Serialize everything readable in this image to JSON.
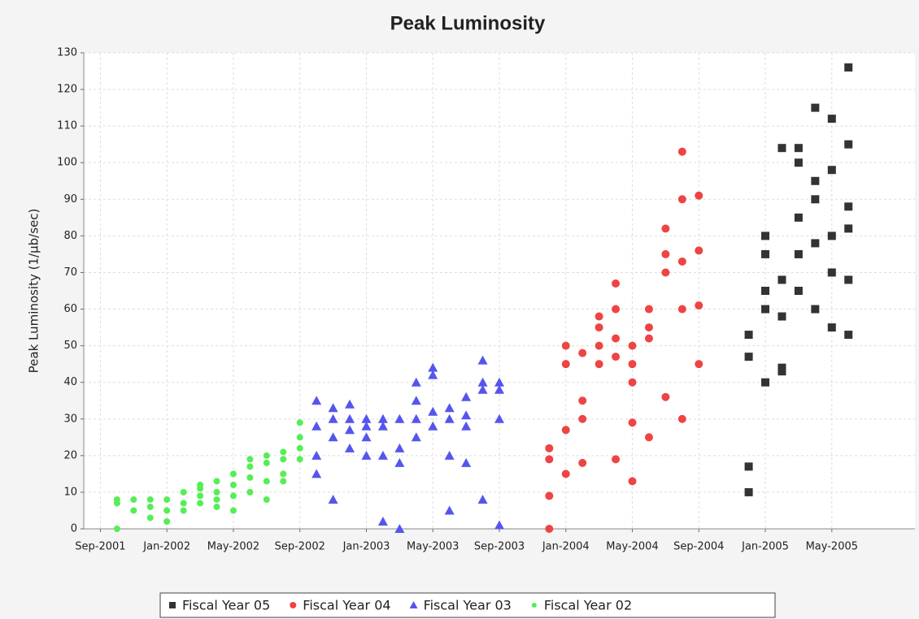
{
  "chart_data": {
    "type": "scatter",
    "title": "Peak Luminosity",
    "y_label": "Peak Luminosity (1/µb/sec)",
    "xlim": [
      "2001-08",
      "2005-10"
    ],
    "xticks": [
      {
        "value": "2001-09",
        "label": "Sep-2001"
      },
      {
        "value": "2002-01",
        "label": "Jan-2002"
      },
      {
        "value": "2002-05",
        "label": "May-2002"
      },
      {
        "value": "2002-09",
        "label": "Sep-2002"
      },
      {
        "value": "2003-01",
        "label": "Jan-2003"
      },
      {
        "value": "2003-05",
        "label": "May-2003"
      },
      {
        "value": "2003-09",
        "label": "Sep-2003"
      },
      {
        "value": "2004-01",
        "label": "Jan-2004"
      },
      {
        "value": "2004-05",
        "label": "May-2004"
      },
      {
        "value": "2004-09",
        "label": "Sep-2004"
      },
      {
        "value": "2005-01",
        "label": "Jan-2005"
      },
      {
        "value": "2005-05",
        "label": "May-2005"
      }
    ],
    "ylim": [
      0,
      130
    ],
    "yticks": [
      0,
      10,
      20,
      30,
      40,
      50,
      60,
      70,
      80,
      90,
      100,
      110,
      120,
      130
    ],
    "grid": true,
    "legend": "bottom",
    "series": [
      {
        "name": "Fiscal Year 05",
        "color": "#333333",
        "marker": "square",
        "x": [
          "2004-12",
          "2004-12",
          "2004-12",
          "2004-12",
          "2005-01",
          "2005-01",
          "2005-01",
          "2005-01",
          "2005-01",
          "2005-02",
          "2005-02",
          "2005-02",
          "2005-02",
          "2005-02",
          "2005-03",
          "2005-03",
          "2005-03",
          "2005-03",
          "2005-03",
          "2005-04",
          "2005-04",
          "2005-04",
          "2005-04",
          "2005-04",
          "2005-05",
          "2005-05",
          "2005-05",
          "2005-05",
          "2005-05",
          "2005-06",
          "2005-06",
          "2005-06",
          "2005-06",
          "2005-06",
          "2005-06"
        ],
        "values": [
          10,
          17,
          47,
          53,
          60,
          80,
          40,
          65,
          75,
          104,
          68,
          44,
          58,
          43,
          100,
          85,
          75,
          65,
          104,
          95,
          78,
          115,
          60,
          90,
          112,
          98,
          70,
          55,
          80,
          126,
          105,
          88,
          53,
          68,
          82
        ]
      },
      {
        "name": "Fiscal Year 04",
        "color": "#ee4444",
        "marker": "circle",
        "x": [
          "2003-12",
          "2003-12",
          "2003-12",
          "2003-12",
          "2004-01",
          "2004-01",
          "2004-01",
          "2004-01",
          "2004-02",
          "2004-02",
          "2004-02",
          "2004-02",
          "2004-03",
          "2004-03",
          "2004-03",
          "2004-03",
          "2004-04",
          "2004-04",
          "2004-04",
          "2004-04",
          "2004-04",
          "2004-05",
          "2004-05",
          "2004-05",
          "2004-05",
          "2004-05",
          "2004-06",
          "2004-06",
          "2004-06",
          "2004-06",
          "2004-07",
          "2004-07",
          "2004-07",
          "2004-07",
          "2004-08",
          "2004-08",
          "2004-08",
          "2004-08",
          "2004-08",
          "2004-09",
          "2004-09",
          "2004-09",
          "2004-09"
        ],
        "values": [
          0,
          9,
          22,
          19,
          27,
          50,
          45,
          15,
          48,
          30,
          35,
          18,
          55,
          50,
          58,
          45,
          67,
          52,
          60,
          47,
          19,
          45,
          40,
          13,
          50,
          29,
          55,
          52,
          60,
          25,
          70,
          75,
          82,
          36,
          103,
          90,
          73,
          60,
          30,
          91,
          76,
          61,
          45
        ]
      },
      {
        "name": "Fiscal Year 03",
        "color": "#5555ee",
        "marker": "triangle",
        "x": [
          "2002-10",
          "2002-10",
          "2002-10",
          "2002-10",
          "2002-11",
          "2002-11",
          "2002-11",
          "2002-11",
          "2002-12",
          "2002-12",
          "2002-12",
          "2002-12",
          "2003-01",
          "2003-01",
          "2003-01",
          "2003-01",
          "2003-02",
          "2003-02",
          "2003-02",
          "2003-02",
          "2003-03",
          "2003-03",
          "2003-03",
          "2003-03",
          "2003-04",
          "2003-04",
          "2003-04",
          "2003-04",
          "2003-05",
          "2003-05",
          "2003-05",
          "2003-05",
          "2003-06",
          "2003-06",
          "2003-06",
          "2003-06",
          "2003-07",
          "2003-07",
          "2003-07",
          "2003-07",
          "2003-08",
          "2003-08",
          "2003-08",
          "2003-08",
          "2003-09",
          "2003-09",
          "2003-09",
          "2003-09"
        ],
        "values": [
          35,
          28,
          20,
          15,
          33,
          25,
          8,
          30,
          30,
          27,
          22,
          34,
          28,
          25,
          20,
          30,
          2,
          20,
          30,
          28,
          22,
          30,
          18,
          0,
          40,
          35,
          25,
          30,
          42,
          44,
          28,
          32,
          30,
          20,
          5,
          33,
          28,
          18,
          31,
          36,
          40,
          38,
          8,
          46,
          40,
          30,
          1,
          38
        ]
      },
      {
        "name": "Fiscal Year 02",
        "color": "#55ee55",
        "marker": "circle-small",
        "x": [
          "2001-10",
          "2001-10",
          "2001-10",
          "2001-11",
          "2001-11",
          "2001-12",
          "2001-12",
          "2001-12",
          "2002-01",
          "2002-01",
          "2002-01",
          "2002-02",
          "2002-02",
          "2002-02",
          "2002-03",
          "2002-03",
          "2002-03",
          "2002-03",
          "2002-04",
          "2002-04",
          "2002-04",
          "2002-04",
          "2002-05",
          "2002-05",
          "2002-05",
          "2002-05",
          "2002-06",
          "2002-06",
          "2002-06",
          "2002-06",
          "2002-07",
          "2002-07",
          "2002-07",
          "2002-07",
          "2002-08",
          "2002-08",
          "2002-08",
          "2002-08",
          "2002-09",
          "2002-09",
          "2002-09",
          "2002-09"
        ],
        "values": [
          7,
          8,
          0,
          5,
          8,
          6,
          8,
          3,
          2,
          8,
          5,
          10,
          7,
          5,
          11,
          9,
          7,
          12,
          10,
          6,
          13,
          8,
          9,
          12,
          15,
          5,
          19,
          14,
          10,
          17,
          8,
          13,
          18,
          20,
          15,
          21,
          19,
          13,
          22,
          25,
          29,
          19
        ]
      }
    ]
  }
}
